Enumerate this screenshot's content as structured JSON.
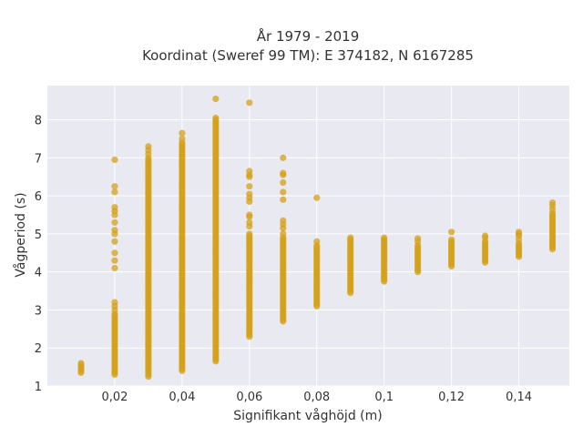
{
  "chart_data": {
    "type": "scatter",
    "title": "År 1979 - 2019",
    "subtitle": "Koordinat (Sweref 99 TM): E 374182, N 6167285",
    "xlabel": "Signifikant våghöjd (m)",
    "ylabel": "Vågperiod (s)",
    "xlim": [
      0.0,
      0.155
    ],
    "ylim": [
      1.0,
      8.9
    ],
    "xticks": [
      0.02,
      0.04,
      0.06,
      0.08,
      0.1,
      0.12,
      0.14
    ],
    "xtick_labels": [
      "0,02",
      "0,04",
      "0,06",
      "0,08",
      "0,1",
      "0,12",
      "0,14"
    ],
    "yticks": [
      1,
      2,
      3,
      4,
      5,
      6,
      7,
      8
    ],
    "ytick_labels": [
      "1",
      "2",
      "3",
      "4",
      "5",
      "6",
      "7",
      "8"
    ],
    "grid": true,
    "marker_color": "#d4a017",
    "background_color": "#e9e9f1",
    "series": [
      {
        "points": [
          {
            "x": 0.01,
            "ranges": [
              [
                1.35,
                1.6
              ]
            ]
          },
          {
            "x": 0.02,
            "ranges": [
              [
                1.3,
                2.9
              ]
            ],
            "extra": [
              3.0,
              3.1,
              3.2,
              4.1,
              4.3,
              4.5,
              4.8,
              5.0,
              5.1,
              5.3,
              5.5,
              5.6,
              5.7,
              6.1,
              6.25,
              6.95
            ]
          },
          {
            "x": 0.03,
            "ranges": [
              [
                1.25,
                7.0
              ]
            ],
            "extra": [
              7.1,
              7.2,
              7.3
            ]
          },
          {
            "x": 0.04,
            "ranges": [
              [
                1.4,
                7.4
              ]
            ],
            "extra": [
              7.5,
              7.65
            ]
          },
          {
            "x": 0.05,
            "ranges": [
              [
                1.65,
                8.0
              ]
            ],
            "extra": [
              8.05,
              8.55
            ]
          },
          {
            "x": 0.06,
            "ranges": [
              [
                2.3,
                5.0
              ]
            ],
            "extra": [
              5.2,
              5.3,
              5.45,
              5.5,
              5.85,
              5.95,
              6.05,
              6.25,
              6.5,
              6.55,
              6.65,
              8.45
            ]
          },
          {
            "x": 0.07,
            "ranges": [
              [
                2.7,
                4.9
              ]
            ],
            "extra": [
              5.0,
              5.15,
              5.25,
              5.35,
              5.9,
              6.1,
              6.35,
              6.55,
              6.6,
              7.0
            ]
          },
          {
            "x": 0.08,
            "ranges": [
              [
                3.1,
                4.7
              ]
            ],
            "extra": [
              4.8,
              5.95
            ]
          },
          {
            "x": 0.09,
            "ranges": [
              [
                3.45,
                4.9
              ]
            ]
          },
          {
            "x": 0.1,
            "ranges": [
              [
                3.75,
                4.9
              ]
            ]
          },
          {
            "x": 0.11,
            "ranges": [
              [
                4.0,
                4.7
              ]
            ],
            "extra": [
              4.8,
              4.88
            ]
          },
          {
            "x": 0.12,
            "ranges": [
              [
                4.15,
                4.85
              ]
            ],
            "extra": [
              5.05
            ]
          },
          {
            "x": 0.13,
            "ranges": [
              [
                4.25,
                4.8
              ]
            ],
            "extra": [
              4.9,
              4.95
            ]
          },
          {
            "x": 0.14,
            "ranges": [
              [
                4.4,
                4.75
              ]
            ],
            "extra": [
              4.85,
              4.95,
              5.0,
              5.05
            ]
          },
          {
            "x": 0.15,
            "ranges": [
              [
                4.6,
                5.55
              ]
            ],
            "extra": [
              5.65,
              5.75,
              5.82
            ]
          }
        ]
      }
    ]
  }
}
